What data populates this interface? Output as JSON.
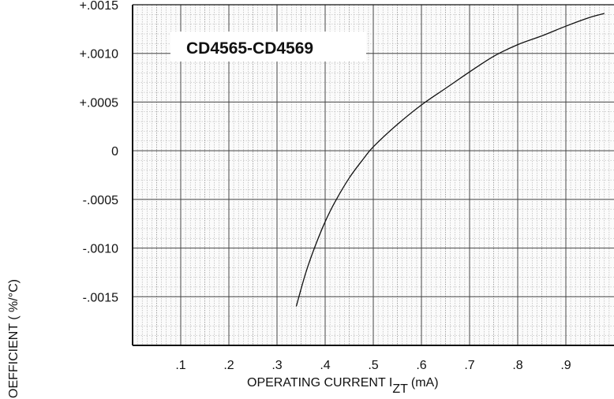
{
  "chart_data": {
    "type": "line",
    "title": "CD4565-CD4569",
    "xlabel_main": "OPERATING CURRENT I",
    "xlabel_sub": "ZT",
    "xlabel_unit": "(mA)",
    "ylabel": "COEFFICIENT ( %/°C)",
    "ylabel_visible": "OEFFICIENT ( %/°C)",
    "xlim": [
      0.0,
      1.0
    ],
    "ylim": [
      -0.002,
      0.0015
    ],
    "x_ticks": [
      {
        "value": 0.1,
        "label": ".1"
      },
      {
        "value": 0.2,
        "label": ".2"
      },
      {
        "value": 0.3,
        "label": ".3"
      },
      {
        "value": 0.4,
        "label": ".4"
      },
      {
        "value": 0.5,
        "label": ".5"
      },
      {
        "value": 0.6,
        "label": ".6"
      },
      {
        "value": 0.7,
        "label": ".7"
      },
      {
        "value": 0.8,
        "label": ".8"
      },
      {
        "value": 0.9,
        "label": ".9"
      }
    ],
    "y_ticks": [
      {
        "value": 0.0015,
        "label": "+.0015"
      },
      {
        "value": 0.001,
        "label": "+.0010"
      },
      {
        "value": 0.0005,
        "label": "+.0005"
      },
      {
        "value": 0.0,
        "label": "0"
      },
      {
        "value": -0.0005,
        "label": "-.0005"
      },
      {
        "value": -0.001,
        "label": "-.0010"
      },
      {
        "value": -0.0015,
        "label": "-.0015"
      }
    ],
    "grid": true,
    "series": [
      {
        "color": "#111111",
        "x": [
          0.34,
          0.36,
          0.38,
          0.4,
          0.42,
          0.45,
          0.48,
          0.5,
          0.55,
          0.6,
          0.65,
          0.7,
          0.75,
          0.8,
          0.85,
          0.9,
          0.95,
          0.98
        ],
        "y": [
          -0.0016,
          -0.00125,
          -0.00097,
          -0.00073,
          -0.00053,
          -0.00028,
          -8e-05,
          4e-05,
          0.00027,
          0.00047,
          0.00064,
          0.00081,
          0.00097,
          0.00109,
          0.00118,
          0.00128,
          0.00137,
          0.00141
        ]
      }
    ]
  }
}
